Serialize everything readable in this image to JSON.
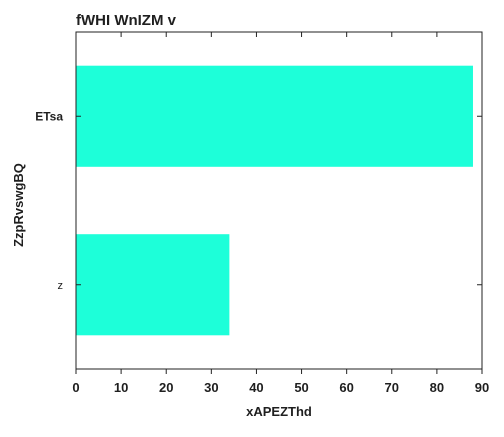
{
  "chart_data": {
    "type": "bar",
    "orientation": "horizontal",
    "title": "fWHI WnIZM  v",
    "xlabel": "xAPEZThd",
    "ylabel": "ZzpRvswgBQ",
    "categories": [
      "ETsa",
      "z"
    ],
    "values": [
      88,
      34
    ],
    "xlim": [
      0,
      90
    ],
    "xticks": [
      "0",
      "10",
      "20",
      "30",
      "40",
      "50",
      "60",
      "70",
      "80",
      "90"
    ],
    "grid": false,
    "bar_color": "#1dffd9"
  }
}
